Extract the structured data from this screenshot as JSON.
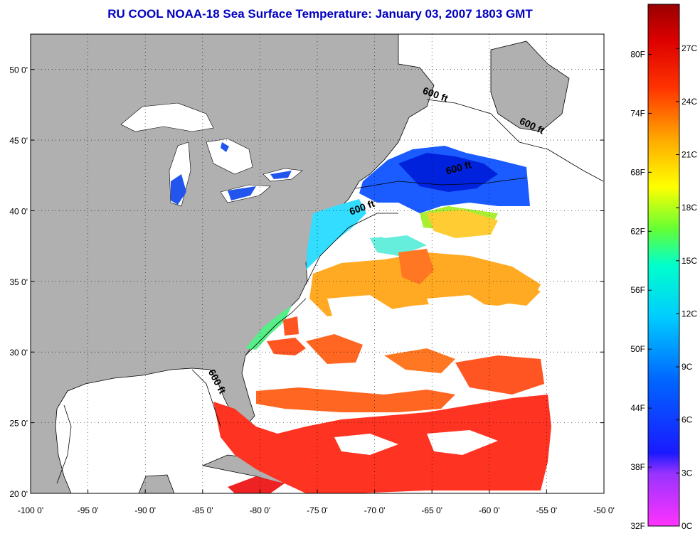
{
  "title": "RU COOL  NOAA-18  Sea Surface Temperature:  January 03, 2007 1803 GMT",
  "colors": {
    "land": "#b0b0b0",
    "cloud_nodata": "#ffffff",
    "frame": "#000000"
  },
  "map": {
    "lon_range": [
      -100,
      -50
    ],
    "lat_range": [
      20,
      52.5
    ],
    "lon_ticks": [
      {
        "value": -100,
        "label": "-100 0'"
      },
      {
        "value": -95,
        "label": "-95 0'"
      },
      {
        "value": -90,
        "label": "-90 0'"
      },
      {
        "value": -85,
        "label": "-85 0'"
      },
      {
        "value": -80,
        "label": "-80 0'"
      },
      {
        "value": -75,
        "label": "-75 0'"
      },
      {
        "value": -70,
        "label": "-70 0'"
      },
      {
        "value": -65,
        "label": "-65 0'"
      },
      {
        "value": -60,
        "label": "-60 0'"
      },
      {
        "value": -55,
        "label": "-55 0'"
      },
      {
        "value": -50,
        "label": "-50 0'"
      }
    ],
    "lat_ticks": [
      {
        "value": 50,
        "label": "50 0'"
      },
      {
        "value": 45,
        "label": "45 0'"
      },
      {
        "value": 40,
        "label": "40 0'"
      },
      {
        "value": 35,
        "label": "35 0'"
      },
      {
        "value": 30,
        "label": "30 0'"
      },
      {
        "value": 25,
        "label": "25 0'"
      },
      {
        "value": 20,
        "label": "20 0'"
      }
    ],
    "contour_labels": [
      {
        "text": "600 ft",
        "lon": -64.8,
        "lat": 48.0,
        "rotate": 20
      },
      {
        "text": "600 ft",
        "lon": -56.4,
        "lat": 45.8,
        "rotate": 25
      },
      {
        "text": "600 ft",
        "lon": -62.6,
        "lat": 42.8,
        "rotate": -15
      },
      {
        "text": "600 ft",
        "lon": -71.0,
        "lat": 40.0,
        "rotate": -20
      },
      {
        "text": "600 ft",
        "lon": -84.0,
        "lat": 27.8,
        "rotate": 62
      }
    ]
  },
  "colorbar": {
    "fahrenheit_labels": [
      {
        "value": 32,
        "label": "32F"
      },
      {
        "value": 38,
        "label": "38F"
      },
      {
        "value": 44,
        "label": "44F"
      },
      {
        "value": 50,
        "label": "50F"
      },
      {
        "value": 56,
        "label": "56F"
      },
      {
        "value": 62,
        "label": "62F"
      },
      {
        "value": 68,
        "label": "68F"
      },
      {
        "value": 74,
        "label": "74F"
      },
      {
        "value": 80,
        "label": "80F"
      }
    ],
    "celsius_labels": [
      {
        "value": 0,
        "label": "0C"
      },
      {
        "value": 3,
        "label": "3C"
      },
      {
        "value": 6,
        "label": "6C"
      },
      {
        "value": 9,
        "label": "9C"
      },
      {
        "value": 12,
        "label": "12C"
      },
      {
        "value": 15,
        "label": "15C"
      },
      {
        "value": 18,
        "label": "18C"
      },
      {
        "value": 21,
        "label": "21C"
      },
      {
        "value": 24,
        "label": "24C"
      },
      {
        "value": 27,
        "label": "27C"
      }
    ],
    "range_c": [
      0,
      29.5
    ]
  }
}
